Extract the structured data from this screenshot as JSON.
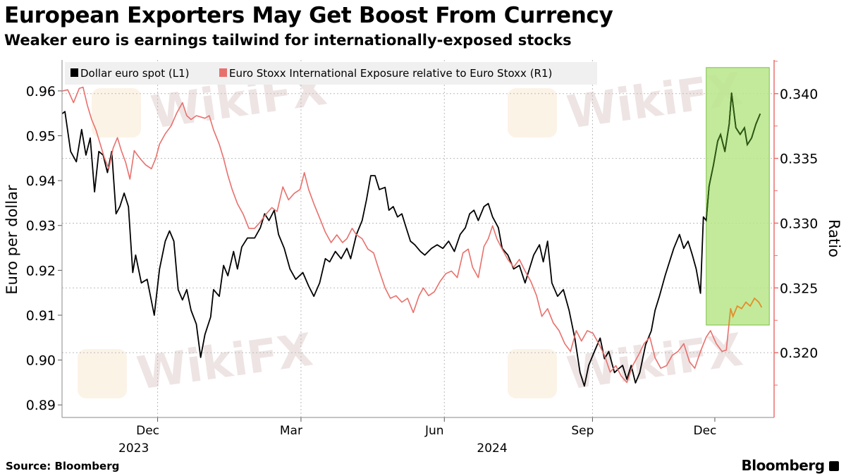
{
  "header": {
    "title": "European Exporters May Get Boost From Currency",
    "subtitle": "Weaker euro is earnings tailwind for internationally-exposed stocks"
  },
  "footer": {
    "source": "Source: Bloomberg",
    "brand": "Bloomberg"
  },
  "watermark": "WikiFX",
  "colors": {
    "black_series": "#000000",
    "red_series": "#e8706c",
    "highlight": "#b9e68a",
    "highlight_border": "#7fbf4a",
    "right_axis": "#e8706c"
  },
  "chart_data": {
    "type": "line",
    "title": "European Exporters May Get Boost From Currency",
    "subtitle": "Weaker euro is earnings tailwind for internationally-exposed stocks",
    "x_unit": "months since 2023-10-01",
    "xlim": [
      0,
      14.9
    ],
    "x_ticks": [
      {
        "label": "Dec",
        "t": 2.0
      },
      {
        "label": "Mar",
        "t": 5.0
      },
      {
        "label": "Jun",
        "t": 8.0
      },
      {
        "label": "Sep",
        "t": 11.1
      },
      {
        "label": "Dec",
        "t": 13.66
      }
    ],
    "year_labels": [
      {
        "label": "2023",
        "t": 1.5
      },
      {
        "label": "2024",
        "t": 9.0
      }
    ],
    "ylabel_left": "Euro per dollar",
    "ylabel_right": "Ratio",
    "ylim_left": [
      0.8872,
      0.9669
    ],
    "ylim_right": [
      0.315,
      0.3426
    ],
    "yticks_left": [
      "0.96",
      "0.95",
      "0.94",
      "0.93",
      "0.92",
      "0.91",
      "0.90",
      "0.89"
    ],
    "yticks_right": [
      "0.340",
      "0.335",
      "0.330",
      "0.325",
      "0.320"
    ],
    "legend": {
      "placement": "top-left",
      "entries": [
        "Dollar euro spot (L1)",
        "Euro Stoxx International Exposure relative to Euro Stoxx (R1)"
      ]
    },
    "highlight": {
      "t_start": 13.48,
      "t_end": 14.8,
      "left_low": 0.9078,
      "left_high": 0.9652
    },
    "series": [
      {
        "name": "Dollar euro spot (L1)",
        "axis": "left",
        "points": [
          [
            0,
            0.9549
          ],
          [
            0.06,
            0.9554
          ],
          [
            0.18,
            0.9465
          ],
          [
            0.3,
            0.9442
          ],
          [
            0.41,
            0.9514
          ],
          [
            0.5,
            0.9457
          ],
          [
            0.59,
            0.9495
          ],
          [
            0.68,
            0.9375
          ],
          [
            0.77,
            0.9465
          ],
          [
            0.86,
            0.9457
          ],
          [
            0.95,
            0.9418
          ],
          [
            1.04,
            0.9465
          ],
          [
            1.13,
            0.9326
          ],
          [
            1.21,
            0.9342
          ],
          [
            1.3,
            0.9372
          ],
          [
            1.39,
            0.9342
          ],
          [
            1.48,
            0.9195
          ],
          [
            1.54,
            0.9234
          ],
          [
            1.66,
            0.9172
          ],
          [
            1.78,
            0.918
          ],
          [
            1.93,
            0.91
          ],
          [
            2.04,
            0.9203
          ],
          [
            2.16,
            0.9265
          ],
          [
            2.25,
            0.9288
          ],
          [
            2.34,
            0.9265
          ],
          [
            2.43,
            0.9157
          ],
          [
            2.52,
            0.9134
          ],
          [
            2.61,
            0.9157
          ],
          [
            2.7,
            0.9111
          ],
          [
            2.81,
            0.908
          ],
          [
            2.9,
            0.9006
          ],
          [
            2.99,
            0.9057
          ],
          [
            3.11,
            0.9096
          ],
          [
            3.17,
            0.9157
          ],
          [
            3.29,
            0.9142
          ],
          [
            3.38,
            0.9211
          ],
          [
            3.47,
            0.9188
          ],
          [
            3.59,
            0.9242
          ],
          [
            3.67,
            0.9203
          ],
          [
            3.76,
            0.9252
          ],
          [
            3.88,
            0.9272
          ],
          [
            4.03,
            0.9272
          ],
          [
            4.15,
            0.9295
          ],
          [
            4.24,
            0.9326
          ],
          [
            4.33,
            0.9311
          ],
          [
            4.44,
            0.9334
          ],
          [
            4.53,
            0.928
          ],
          [
            4.65,
            0.9249
          ],
          [
            4.77,
            0.9203
          ],
          [
            4.89,
            0.918
          ],
          [
            5.04,
            0.9195
          ],
          [
            5.16,
            0.9165
          ],
          [
            5.27,
            0.9142
          ],
          [
            5.39,
            0.9172
          ],
          [
            5.51,
            0.9226
          ],
          [
            5.6,
            0.9219
          ],
          [
            5.72,
            0.9242
          ],
          [
            5.84,
            0.9226
          ],
          [
            5.96,
            0.9249
          ],
          [
            6.04,
            0.9226
          ],
          [
            6.16,
            0.928
          ],
          [
            6.28,
            0.9311
          ],
          [
            6.37,
            0.9357
          ],
          [
            6.46,
            0.9411
          ],
          [
            6.55,
            0.9411
          ],
          [
            6.64,
            0.938
          ],
          [
            6.76,
            0.9385
          ],
          [
            6.84,
            0.9334
          ],
          [
            6.93,
            0.9342
          ],
          [
            7.02,
            0.9319
          ],
          [
            7.11,
            0.9326
          ],
          [
            7.2,
            0.9295
          ],
          [
            7.29,
            0.9265
          ],
          [
            7.38,
            0.9257
          ],
          [
            7.5,
            0.9242
          ],
          [
            7.59,
            0.9234
          ],
          [
            7.73,
            0.9249
          ],
          [
            7.85,
            0.9257
          ],
          [
            7.97,
            0.9249
          ],
          [
            8.09,
            0.9265
          ],
          [
            8.21,
            0.9242
          ],
          [
            8.33,
            0.928
          ],
          [
            8.44,
            0.9295
          ],
          [
            8.53,
            0.9326
          ],
          [
            8.62,
            0.9334
          ],
          [
            8.71,
            0.9311
          ],
          [
            8.83,
            0.9342
          ],
          [
            8.92,
            0.9349
          ],
          [
            9.01,
            0.9319
          ],
          [
            9.13,
            0.9295
          ],
          [
            9.21,
            0.9249
          ],
          [
            9.33,
            0.9234
          ],
          [
            9.45,
            0.9203
          ],
          [
            9.57,
            0.9211
          ],
          [
            9.69,
            0.9172
          ],
          [
            9.78,
            0.9203
          ],
          [
            9.87,
            0.9234
          ],
          [
            9.99,
            0.9257
          ],
          [
            10.07,
            0.9219
          ],
          [
            10.16,
            0.9265
          ],
          [
            10.25,
            0.9172
          ],
          [
            10.37,
            0.9142
          ],
          [
            10.49,
            0.9157
          ],
          [
            10.61,
            0.9111
          ],
          [
            10.73,
            0.9049
          ],
          [
            10.84,
            0.8972
          ],
          [
            10.93,
            0.8942
          ],
          [
            11.02,
            0.8988
          ],
          [
            11.14,
            0.9019
          ],
          [
            11.26,
            0.9049
          ],
          [
            11.35,
            0.9003
          ],
          [
            11.44,
            0.9019
          ],
          [
            11.56,
            0.8972
          ],
          [
            11.64,
            0.898
          ],
          [
            11.73,
            0.8988
          ],
          [
            11.82,
            0.8957
          ],
          [
            11.91,
            0.8988
          ],
          [
            12.0,
            0.8949
          ],
          [
            12.09,
            0.8972
          ],
          [
            12.21,
            0.9034
          ],
          [
            12.33,
            0.9065
          ],
          [
            12.41,
            0.9111
          ],
          [
            12.5,
            0.9142
          ],
          [
            12.62,
            0.9188
          ],
          [
            12.71,
            0.9219
          ],
          [
            12.8,
            0.9249
          ],
          [
            12.92,
            0.928
          ],
          [
            13.01,
            0.9249
          ],
          [
            13.1,
            0.9265
          ],
          [
            13.19,
            0.9234
          ],
          [
            13.27,
            0.9203
          ],
          [
            13.36,
            0.9149
          ],
          [
            13.42,
            0.9319
          ],
          [
            13.48,
            0.9311
          ],
          [
            13.54,
            0.9388
          ],
          [
            13.63,
            0.9434
          ],
          [
            13.72,
            0.9488
          ],
          [
            13.78,
            0.9503
          ],
          [
            13.87,
            0.9465
          ],
          [
            13.96,
            0.9526
          ],
          [
            14.01,
            0.9595
          ],
          [
            14.1,
            0.9518
          ],
          [
            14.19,
            0.9503
          ],
          [
            14.28,
            0.9518
          ],
          [
            14.34,
            0.948
          ],
          [
            14.43,
            0.9495
          ],
          [
            14.52,
            0.9526
          ],
          [
            14.61,
            0.9549
          ]
        ]
      },
      {
        "name": "Euro Stoxx International Exposure relative to Euro Stoxx (R1)",
        "axis": "right",
        "points": [
          [
            0,
            0.3402
          ],
          [
            0.12,
            0.3403
          ],
          [
            0.24,
            0.3393
          ],
          [
            0.36,
            0.3404
          ],
          [
            0.44,
            0.3405
          ],
          [
            0.53,
            0.3391
          ],
          [
            0.62,
            0.338
          ],
          [
            0.71,
            0.3372
          ],
          [
            0.8,
            0.3361
          ],
          [
            0.89,
            0.335
          ],
          [
            0.98,
            0.3342
          ],
          [
            1.07,
            0.3358
          ],
          [
            1.16,
            0.3366
          ],
          [
            1.24,
            0.3356
          ],
          [
            1.33,
            0.3347
          ],
          [
            1.42,
            0.3334
          ],
          [
            1.51,
            0.3356
          ],
          [
            1.63,
            0.335
          ],
          [
            1.75,
            0.3345
          ],
          [
            1.87,
            0.3342
          ],
          [
            1.96,
            0.335
          ],
          [
            2.04,
            0.3361
          ],
          [
            2.16,
            0.3369
          ],
          [
            2.28,
            0.3375
          ],
          [
            2.4,
            0.3385
          ],
          [
            2.52,
            0.3393
          ],
          [
            2.61,
            0.3383
          ],
          [
            2.7,
            0.338
          ],
          [
            2.81,
            0.3383
          ],
          [
            2.99,
            0.3381
          ],
          [
            3.08,
            0.3383
          ],
          [
            3.17,
            0.3372
          ],
          [
            3.29,
            0.3361
          ],
          [
            3.38,
            0.335
          ],
          [
            3.47,
            0.3337
          ],
          [
            3.56,
            0.3326
          ],
          [
            3.67,
            0.3315
          ],
          [
            3.79,
            0.3307
          ],
          [
            3.91,
            0.3296
          ],
          [
            4.03,
            0.3296
          ],
          [
            4.15,
            0.3301
          ],
          [
            4.27,
            0.3307
          ],
          [
            4.39,
            0.3312
          ],
          [
            4.5,
            0.3309
          ],
          [
            4.62,
            0.3328
          ],
          [
            4.74,
            0.3318
          ],
          [
            4.86,
            0.3323
          ],
          [
            4.98,
            0.3326
          ],
          [
            5.07,
            0.3339
          ],
          [
            5.16,
            0.3326
          ],
          [
            5.27,
            0.3315
          ],
          [
            5.39,
            0.3304
          ],
          [
            5.51,
            0.3293
          ],
          [
            5.63,
            0.3285
          ],
          [
            5.75,
            0.3291
          ],
          [
            5.87,
            0.3285
          ],
          [
            5.96,
            0.3288
          ],
          [
            6.07,
            0.3296
          ],
          [
            6.16,
            0.3291
          ],
          [
            6.28,
            0.3288
          ],
          [
            6.4,
            0.328
          ],
          [
            6.52,
            0.3277
          ],
          [
            6.64,
            0.3263
          ],
          [
            6.76,
            0.325
          ],
          [
            6.87,
            0.3242
          ],
          [
            6.99,
            0.3244
          ],
          [
            7.11,
            0.3239
          ],
          [
            7.23,
            0.3242
          ],
          [
            7.35,
            0.3231
          ],
          [
            7.47,
            0.3244
          ],
          [
            7.56,
            0.325
          ],
          [
            7.67,
            0.3244
          ],
          [
            7.79,
            0.3247
          ],
          [
            7.91,
            0.3255
          ],
          [
            8.03,
            0.3261
          ],
          [
            8.15,
            0.3263
          ],
          [
            8.27,
            0.3258
          ],
          [
            8.39,
            0.3277
          ],
          [
            8.5,
            0.328
          ],
          [
            8.59,
            0.3266
          ],
          [
            8.71,
            0.3258
          ],
          [
            8.83,
            0.3282
          ],
          [
            8.92,
            0.3288
          ],
          [
            9.01,
            0.3298
          ],
          [
            9.1,
            0.3288
          ],
          [
            9.21,
            0.328
          ],
          [
            9.33,
            0.3272
          ],
          [
            9.45,
            0.3266
          ],
          [
            9.57,
            0.3272
          ],
          [
            9.69,
            0.3263
          ],
          [
            9.81,
            0.3255
          ],
          [
            9.93,
            0.3244
          ],
          [
            10.04,
            0.3228
          ],
          [
            10.16,
            0.3234
          ],
          [
            10.28,
            0.3223
          ],
          [
            10.4,
            0.3217
          ],
          [
            10.52,
            0.3207
          ],
          [
            10.64,
            0.3201
          ],
          [
            10.76,
            0.3217
          ],
          [
            10.87,
            0.3209
          ],
          [
            10.99,
            0.3217
          ],
          [
            11.11,
            0.3215
          ],
          [
            11.23,
            0.3207
          ],
          [
            11.35,
            0.3198
          ],
          [
            11.47,
            0.3185
          ],
          [
            11.59,
            0.319
          ],
          [
            11.7,
            0.3182
          ],
          [
            11.82,
            0.3177
          ],
          [
            11.94,
            0.319
          ],
          [
            12.06,
            0.3198
          ],
          [
            12.18,
            0.3207
          ],
          [
            12.3,
            0.3212
          ],
          [
            12.41,
            0.3196
          ],
          [
            12.53,
            0.3188
          ],
          [
            12.65,
            0.319
          ],
          [
            12.77,
            0.3198
          ],
          [
            12.89,
            0.3201
          ],
          [
            13.01,
            0.3207
          ],
          [
            13.13,
            0.3193
          ],
          [
            13.24,
            0.3188
          ],
          [
            13.36,
            0.3201
          ],
          [
            13.48,
            0.3212
          ],
          [
            13.57,
            0.3217
          ],
          [
            13.69,
            0.3207
          ],
          [
            13.81,
            0.3201
          ],
          [
            13.9,
            0.3202
          ],
          [
            13.99,
            0.3234
          ],
          [
            14.04,
            0.3228
          ],
          [
            14.13,
            0.3236
          ],
          [
            14.22,
            0.3234
          ],
          [
            14.31,
            0.3239
          ],
          [
            14.4,
            0.3236
          ],
          [
            14.49,
            0.3242
          ],
          [
            14.58,
            0.3239
          ],
          [
            14.64,
            0.3235
          ]
        ]
      }
    ]
  }
}
